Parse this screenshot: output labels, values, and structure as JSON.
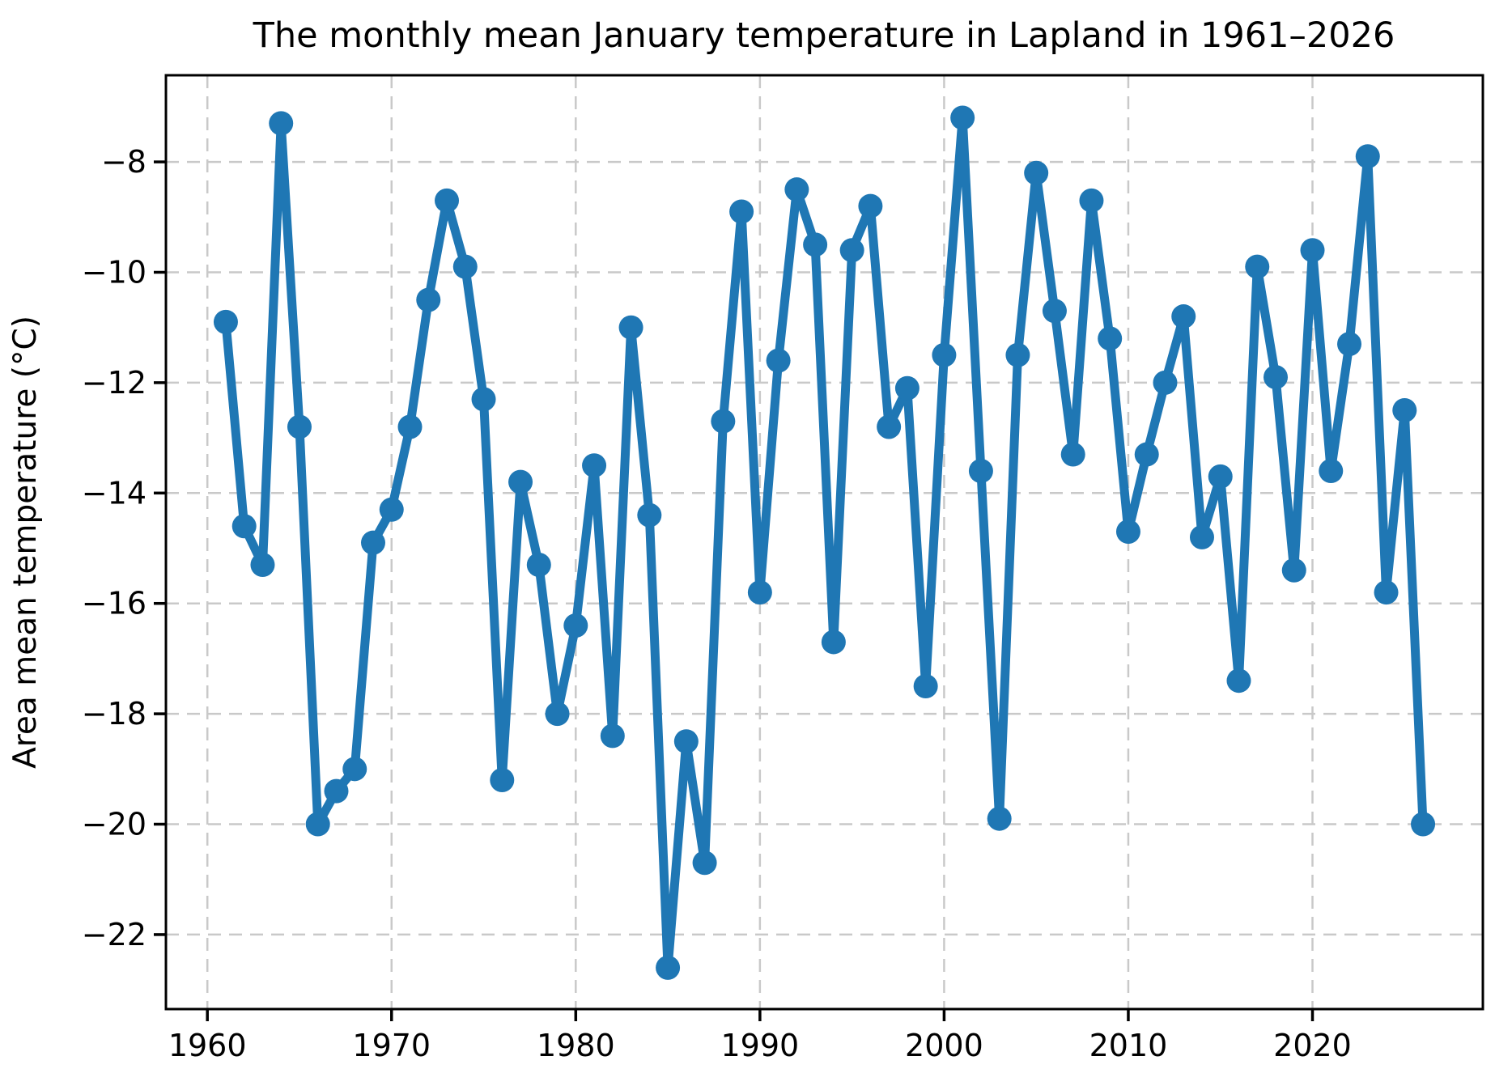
{
  "chart_data": {
    "type": "line",
    "title": "The monthly mean January temperature in Lapland in 1961–2026",
    "xlabel": "",
    "ylabel": "Area mean temperature (°C)",
    "x": [
      1961,
      1962,
      1963,
      1964,
      1965,
      1966,
      1967,
      1968,
      1969,
      1970,
      1971,
      1972,
      1973,
      1974,
      1975,
      1976,
      1977,
      1978,
      1979,
      1980,
      1981,
      1982,
      1983,
      1984,
      1985,
      1986,
      1987,
      1988,
      1989,
      1990,
      1991,
      1992,
      1993,
      1994,
      1995,
      1996,
      1997,
      1998,
      1999,
      2000,
      2001,
      2002,
      2003,
      2004,
      2005,
      2006,
      2007,
      2008,
      2009,
      2010,
      2011,
      2012,
      2013,
      2014,
      2015,
      2016,
      2017,
      2018,
      2019,
      2020,
      2021,
      2022,
      2023,
      2024,
      2025,
      2026
    ],
    "series": [
      {
        "name": "Monthly mean January temperature",
        "values": [
          -10.9,
          -14.6,
          -15.3,
          -7.3,
          -12.8,
          -20.0,
          -19.4,
          -19.0,
          -14.9,
          -14.3,
          -12.8,
          -10.5,
          -8.7,
          -9.9,
          -12.3,
          -19.2,
          -13.8,
          -15.3,
          -18.0,
          -16.4,
          -13.5,
          -18.4,
          -11.0,
          -14.4,
          -22.6,
          -18.5,
          -20.7,
          -12.7,
          -8.9,
          -15.8,
          -11.6,
          -8.5,
          -9.5,
          -16.7,
          -9.6,
          -8.8,
          -12.8,
          -12.1,
          -17.5,
          -11.5,
          -7.2,
          -13.6,
          -19.9,
          -11.5,
          -8.2,
          -10.7,
          -13.3,
          -8.7,
          -11.2,
          -14.7,
          -13.3,
          -12.0,
          -10.8,
          -14.8,
          -13.7,
          -17.4,
          -9.9,
          -11.9,
          -15.4,
          -9.6,
          -13.6,
          -11.3,
          -7.9,
          -15.8,
          -12.5,
          -20.0
        ]
      }
    ],
    "xlim": [
      1957.75,
      2029.25
    ],
    "ylim": [
      -23.35,
      -6.43
    ],
    "xticks": [
      1960,
      1970,
      1980,
      1990,
      2000,
      2010,
      2020
    ],
    "yticks": [
      -8,
      -10,
      -12,
      -14,
      -16,
      -18,
      -20,
      -22
    ],
    "grid": true,
    "grid_style": "dashed",
    "legend": "none",
    "line_color": "#1f77b4",
    "marker": "circle",
    "grid_color": "#c9c9c9",
    "spine_color": "#000000"
  }
}
